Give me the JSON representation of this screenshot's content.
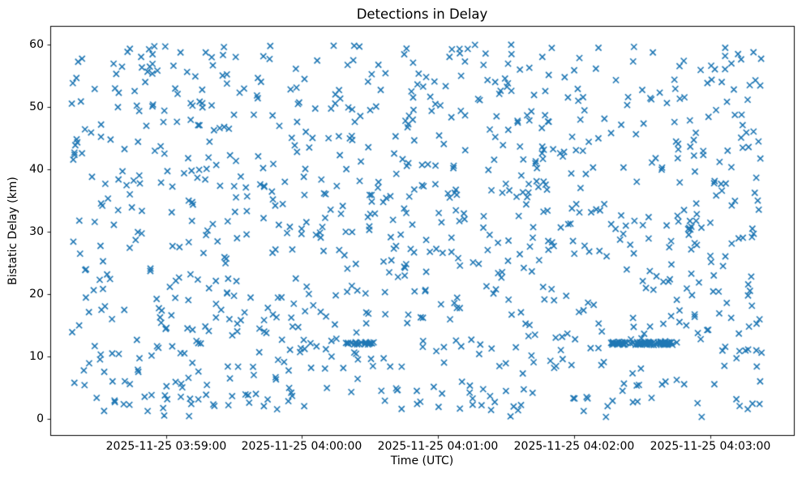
{
  "chart_data": {
    "type": "scatter",
    "title": "Detections in Delay",
    "xlabel": "Time (UTC)",
    "ylabel": "Bistatic Delay (km)",
    "grid": false,
    "legend": "none",
    "marker": "x",
    "marker_color": "#1f77b4",
    "marker_size_px": 7.2,
    "marker_stroke_px": 1.6,
    "axes_color": "#000000",
    "background_color": "#ffffff",
    "x_tick_labels": [
      "2025-11-25 03:59:00",
      "2025-11-25 04:00:00",
      "2025-11-25 04:01:00",
      "2025-11-25 04:02:00",
      "2025-11-25 04:03:00"
    ],
    "y_tick_labels": [
      "0",
      "10",
      "20",
      "30",
      "40",
      "50",
      "60"
    ],
    "y_tick_values": [
      0,
      10,
      20,
      30,
      40,
      50,
      60
    ],
    "x_lim": [
      "2025-11-25 03:58:09",
      "2025-11-25 04:03:37"
    ],
    "y_lim": [
      -2.6,
      63.0
    ],
    "points": {
      "description": "approx 1080 detections, uniformly scattered in time and bistatic delay, plus two dense horizontal detection tracks near 12 km",
      "generator": "seeded-uniform",
      "seed": 42,
      "n_uniform": 990,
      "x_data_range": [
        "2025-11-25 03:58:18",
        "2025-11-25 04:03:24"
      ],
      "y_data_range": [
        0.3,
        60.0
      ],
      "tracks": [
        {
          "name": "dense-track",
          "y_km": 12.1,
          "y_jitter_km": 0.25,
          "x_start": "2025-11-25 04:02:16",
          "x_end": "2025-11-25 04:02:44",
          "n": 70
        },
        {
          "name": "short-track",
          "y_km": 12.1,
          "y_jitter_km": 0.2,
          "x_start": "2025-11-25 04:00:19",
          "x_end": "2025-11-25 04:00:32",
          "n": 22
        }
      ]
    }
  }
}
